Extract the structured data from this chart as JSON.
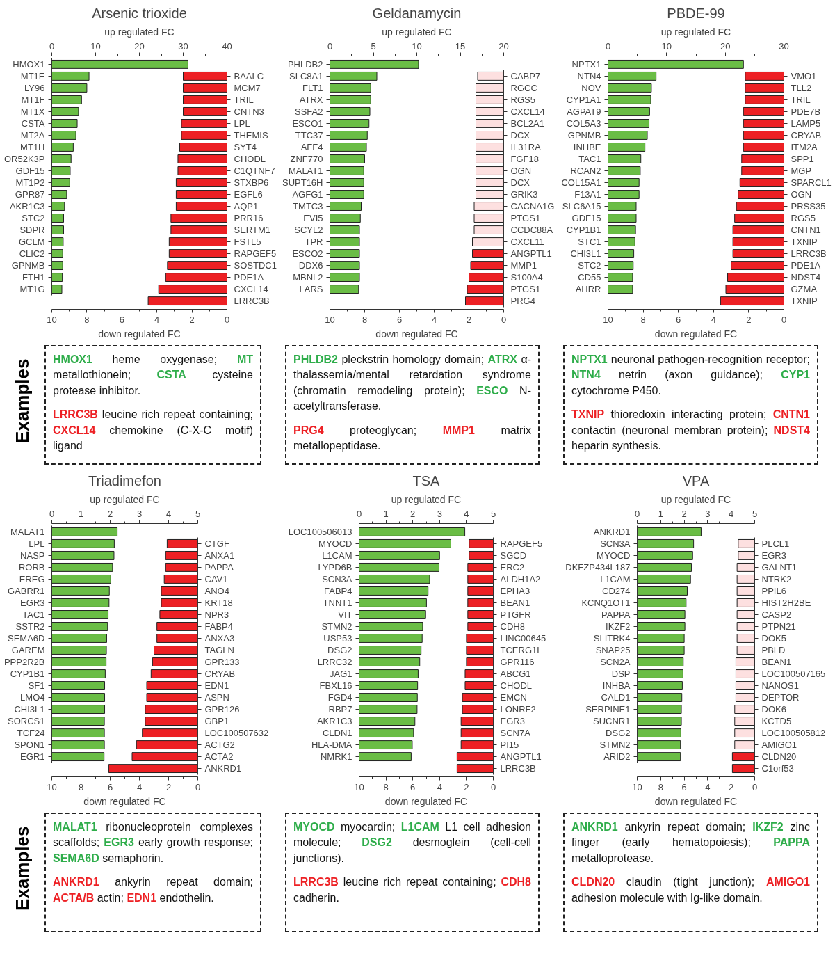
{
  "chart_data": [
    {
      "type": "bar",
      "orientation": "horizontal",
      "title": "Arsenic trioxide",
      "xlabel": "up regulated FC",
      "xlim": [
        0,
        40
      ],
      "xticks": [
        0,
        {
          "value": 5,
          "label": null
        },
        10,
        {
          "value": 15,
          "label": null
        },
        20,
        {
          "value": 25,
          "label": null
        },
        30,
        {
          "value": 35,
          "label": null
        },
        40
      ],
      "color": "#6abd45",
      "categories": [
        "HMOX1",
        "MT1E",
        "LY96",
        "MT1F",
        "MT1X",
        "CSTA",
        "MT2A",
        "MT1H",
        "OR52K3P",
        "GDF15",
        "MT1P2",
        "GPR87",
        "AKR1C3",
        "STC2",
        "SDPR",
        "GCLM",
        "CLIC2",
        "GPNMB",
        "FTH1",
        "MT1G"
      ],
      "values": [
        31.1,
        8.5,
        8.0,
        6.8,
        6.1,
        5.8,
        5.5,
        4.9,
        4.4,
        4.2,
        4.1,
        3.4,
        2.9,
        2.7,
        2.7,
        2.6,
        2.5,
        2.5,
        2.4,
        2.3
      ]
    },
    {
      "type": "bar",
      "orientation": "horizontal",
      "xlabel": "down regulated FC",
      "xlim": [
        10,
        0
      ],
      "xticks": [
        10,
        {
          "value": 9,
          "label": null
        },
        8,
        {
          "value": 7,
          "label": null
        },
        6,
        {
          "value": 5,
          "label": null
        },
        4,
        {
          "value": 3,
          "label": null
        },
        2,
        {
          "value": 1,
          "label": null
        },
        0
      ],
      "color": "#ed2024",
      "categories": [
        "BAALC",
        "MCM7",
        "TRIL",
        "CNTN3",
        "LPL",
        "THEMIS",
        "SYT4",
        "CHODL",
        "C1QTNF7",
        "STXBP6",
        "EGFL6",
        "AQP1",
        "PRR16",
        "SERTM1",
        "FSTL5",
        "RAPGEF5",
        "SOSTDC1",
        "PDE1A",
        "CXCL14",
        "LRRC3B"
      ],
      "values": [
        2.5,
        2.5,
        2.5,
        2.5,
        2.6,
        2.6,
        2.7,
        2.8,
        2.8,
        2.9,
        2.9,
        2.9,
        3.2,
        3.2,
        3.3,
        3.3,
        3.4,
        3.5,
        3.9,
        4.5
      ]
    },
    {
      "type": "bar",
      "orientation": "horizontal",
      "title": "Geldanamycin",
      "xlabel": "up regulated FC",
      "xlim": [
        0,
        20
      ],
      "xticks": [
        0,
        {
          "value": 2.5,
          "label": null
        },
        5,
        {
          "value": 7.5,
          "label": null
        },
        10,
        {
          "value": 12.5,
          "label": null
        },
        15,
        {
          "value": 17.5,
          "label": null
        },
        20
      ],
      "color": "#6abd45",
      "categories": [
        "PHLDB2",
        "SLC8A1",
        "FLT1",
        "ATRX",
        "SSFA2",
        "ESCO1",
        "TTC37",
        "AFF4",
        "ZNF770",
        "MALAT1",
        "SUPT16H",
        "AGFG1",
        "TMTC3",
        "EVI5",
        "SCYL2",
        "TPR",
        "ESCO2",
        "DDX6",
        "MBNL2",
        "LARS"
      ],
      "values": [
        10.2,
        5.4,
        4.7,
        4.7,
        4.6,
        4.5,
        4.3,
        4.2,
        4.0,
        3.9,
        3.9,
        3.9,
        3.6,
        3.5,
        3.4,
        3.4,
        3.4,
        3.4,
        3.4,
        3.3
      ]
    },
    {
      "type": "bar",
      "orientation": "horizontal",
      "xlabel": "down regulated FC",
      "xlim": [
        10,
        0
      ],
      "xticks": [
        10,
        {
          "value": 9,
          "label": null
        },
        8,
        {
          "value": 7,
          "label": null
        },
        6,
        {
          "value": 5,
          "label": null
        },
        4,
        {
          "value": 3,
          "label": null
        },
        2,
        {
          "value": 1,
          "label": null
        },
        0
      ],
      "colors": [
        "#fde0e0",
        "#fde0e0",
        "#fde0e0",
        "#fde0e0",
        "#fde0e0",
        "#fde0e0",
        "#fde0e0",
        "#fde0e0",
        "#fde0e0",
        "#fde0e0",
        "#fde0e0",
        "#fde0e0",
        "#fde0e0",
        "#fde0e0",
        "#fde0e0",
        "#ed2024",
        "#ed2024",
        "#ed2024",
        "#ed2024",
        "#ed2024"
      ],
      "categories": [
        "CABP7",
        "RGCC",
        "RGS5",
        "CXCL14",
        "BCL2A1",
        "DCX",
        "IL31RA",
        "FGF18",
        "OGN",
        "DCX",
        "GRIK3",
        "CACNA1G",
        "PTGS1",
        "CCDC88A",
        "CXCL11",
        "ANGPTL1",
        "MMP1",
        "S100A4",
        "PTGS1",
        "PRG4"
      ],
      "values": [
        1.5,
        1.6,
        1.6,
        1.6,
        1.6,
        1.6,
        1.6,
        1.6,
        1.6,
        1.6,
        1.6,
        1.7,
        1.7,
        1.7,
        1.8,
        1.8,
        1.9,
        2.0,
        2.1,
        2.2
      ]
    },
    {
      "type": "bar",
      "orientation": "horizontal",
      "title": "PBDE-99",
      "xlabel": "up regulated FC",
      "xlim": [
        0,
        30
      ],
      "xticks": [
        0,
        {
          "value": 5,
          "label": null
        },
        10,
        {
          "value": 15,
          "label": null
        },
        20,
        {
          "value": 25,
          "label": null
        },
        30
      ],
      "color": "#6abd45",
      "categories": [
        "NPTX1",
        "NTN4",
        "NOV",
        "CYP1A1",
        "AGPAT9",
        "COL5A3",
        "GPNMB",
        "INHBE",
        "TAC1",
        "RCAN2",
        "COL15A1",
        "F13A1",
        "SLC6A15",
        "GDF15",
        "CYP1B1",
        "STC1",
        "CHI3L1",
        "STC2",
        "CD55",
        "AHRR"
      ],
      "values": [
        23.1,
        8.2,
        7.4,
        7.3,
        7.1,
        7.0,
        6.7,
        6.3,
        5.6,
        5.5,
        5.3,
        5.3,
        4.8,
        4.8,
        4.7,
        4.6,
        4.4,
        4.3,
        4.2,
        4.2
      ]
    },
    {
      "type": "bar",
      "orientation": "horizontal",
      "xlabel": "down regulated FC",
      "xlim": [
        10,
        0
      ],
      "xticks": [
        10,
        {
          "value": 9,
          "label": null
        },
        8,
        {
          "value": 7,
          "label": null
        },
        6,
        {
          "value": 5,
          "label": null
        },
        4,
        {
          "value": 3,
          "label": null
        },
        2,
        {
          "value": 1,
          "label": null
        },
        0
      ],
      "color": "#ed2024",
      "categories": [
        "VMO1",
        "TLL2",
        "TRIL",
        "PDE7B",
        "LAMP5",
        "CRYAB",
        "ITM2A",
        "SPP1",
        "MGP",
        "SPARCL1",
        "OGN",
        "PRSS35",
        "RGS5",
        "CNTN1",
        "TXNIP",
        "LRRC3B",
        "PDE1A",
        "NDST4",
        "GZMA",
        "TXNIP"
      ],
      "values": [
        2.2,
        2.2,
        2.2,
        2.3,
        2.3,
        2.3,
        2.3,
        2.4,
        2.4,
        2.5,
        2.6,
        2.7,
        2.8,
        2.9,
        2.9,
        2.9,
        3.0,
        3.2,
        3.3,
        3.6
      ]
    },
    {
      "type": "other",
      "ylabel": "Examples",
      "colors": [
        "#2ead4a",
        "#ed2024"
      ],
      "annotations": [
        "HMOX1 heme oxygenase; MT metallothionein; CSTA cysteine protease inhibitor.",
        "LRRC3B leucine rich repeat containing; CXCL14 chemokine (C-X-C motif) ligand"
      ]
    },
    {
      "type": "other",
      "colors": [
        "#2ead4a",
        "#ed2024"
      ],
      "annotations": [
        "PHLDB2 pleckstrin homology domain; ATRX α-thalassemia/mental retardation syndrome (chromatin remodeling protein); ESCO N-acetyltransferase.",
        "PRG4 proteoglycan; MMP1 matrix metallopeptidase."
      ]
    },
    {
      "type": "other",
      "colors": [
        "#2ead4a",
        "#ed2024"
      ],
      "annotations": [
        "NPTX1 neuronal pathogen-recognition receptor; NTN4 netrin (axon guidance); CYP1 cytochrome P450.",
        "TXNIP thioredoxin interacting protein; CNTN1 contactin (neuronal membran protein); NDST4 heparin synthesis."
      ]
    },
    {
      "type": "bar",
      "orientation": "horizontal",
      "title": "Triadimefon",
      "xlabel": "up regulated FC",
      "xlim": [
        0,
        5
      ],
      "xticks": [
        0,
        {
          "value": 0.5,
          "label": null
        },
        1,
        {
          "value": 1.5,
          "label": null
        },
        2,
        {
          "value": 2.5,
          "label": null
        },
        3,
        {
          "value": 3.5,
          "label": null
        },
        4,
        {
          "value": 4.5,
          "label": null
        },
        5
      ],
      "color": "#6abd45",
      "categories": [
        "MALAT1",
        "LPL",
        "NASP",
        "RORB",
        "EREG",
        "GABRR1",
        "EGR3",
        "TAC1",
        "SSTR2",
        "SEMA6D",
        "GAREM",
        "PPP2R2B",
        "CYP1B1",
        "SF1",
        "LMO4",
        "CHI3L1",
        "SORCS1",
        "TCF24",
        "SPON1",
        "EGR1"
      ],
      "values": [
        2.24,
        2.14,
        2.13,
        2.08,
        2.02,
        1.97,
        1.96,
        1.93,
        1.91,
        1.88,
        1.87,
        1.86,
        1.83,
        1.81,
        1.81,
        1.81,
        1.8,
        1.8,
        1.8,
        1.79
      ]
    },
    {
      "type": "bar",
      "orientation": "horizontal",
      "xlabel": "down regulated FC",
      "xlim": [
        10,
        0
      ],
      "xticks": [
        10,
        {
          "value": 9,
          "label": null
        },
        8,
        {
          "value": 7,
          "label": null
        },
        6,
        {
          "value": 5,
          "label": null
        },
        4,
        {
          "value": 3,
          "label": null
        },
        2,
        {
          "value": 1,
          "label": null
        },
        0
      ],
      "color": "#ed2024",
      "categories": [
        "CTGF",
        "ANXA1",
        "PAPPA",
        "CAV1",
        "ANO4",
        "KRT18",
        "NPR3",
        "FABP4",
        "ANXA3",
        "TAGLN",
        "GPR133",
        "CRYAB",
        "EDN1",
        "ASPN",
        "GPR126",
        "GBP1",
        "LOC100507632",
        "ACTG2",
        "ACTA2",
        "ANKRD1"
      ],
      "values": [
        2.1,
        2.2,
        2.2,
        2.3,
        2.5,
        2.5,
        2.6,
        2.8,
        2.8,
        3.0,
        3.1,
        3.2,
        3.5,
        3.5,
        3.6,
        3.6,
        3.8,
        4.2,
        4.5,
        6.1
      ]
    },
    {
      "type": "bar",
      "orientation": "horizontal",
      "title": "TSA",
      "xlabel": "up regulated FC",
      "xlim": [
        0,
        5
      ],
      "xticks": [
        0,
        {
          "value": 0.5,
          "label": null
        },
        1,
        {
          "value": 1.5,
          "label": null
        },
        2,
        {
          "value": 2.5,
          "label": null
        },
        3,
        {
          "value": 3.5,
          "label": null
        },
        4,
        {
          "value": 4.5,
          "label": null
        },
        5
      ],
      "color": "#6abd45",
      "categories": [
        "LOC100506013",
        "MYOCD",
        "L1CAM",
        "LYPD6B",
        "SCN3A",
        "FABP4",
        "TNNT1",
        "VIT",
        "STMN2",
        "USP53",
        "DSG2",
        "LRRC32",
        "JAG1",
        "FBXL16",
        "FGD4",
        "RBP7",
        "AKR1C3",
        "CLDN1",
        "HLA-DMA",
        "NMRK1"
      ],
      "values": [
        3.94,
        3.42,
        3.0,
        2.98,
        2.63,
        2.57,
        2.51,
        2.48,
        2.37,
        2.35,
        2.31,
        2.26,
        2.2,
        2.18,
        2.17,
        2.16,
        2.08,
        2.03,
        1.98,
        1.94
      ]
    },
    {
      "type": "bar",
      "orientation": "horizontal",
      "xlabel": "down regulated FC",
      "xlim": [
        10,
        0
      ],
      "xticks": [
        10,
        {
          "value": 9,
          "label": null
        },
        8,
        {
          "value": 7,
          "label": null
        },
        6,
        {
          "value": 5,
          "label": null
        },
        4,
        {
          "value": 3,
          "label": null
        },
        2,
        {
          "value": 1,
          "label": null
        },
        0
      ],
      "color": "#ed2024",
      "categories": [
        "RAPGEF5",
        "SGCD",
        "ERC2",
        "ALDH1A2",
        "EPHA3",
        "BEAN1",
        "PTGFR",
        "CDH8",
        "LINC00645",
        "TCERG1L",
        "GPR116",
        "ABCG1",
        "CHODL",
        "EMCN",
        "LONRF2",
        "EGR3",
        "SCN7A",
        "PI15",
        "ANGPTL1",
        "LRRC3B"
      ],
      "values": [
        1.8,
        1.8,
        1.9,
        1.9,
        1.9,
        1.9,
        1.9,
        1.9,
        2.0,
        2.0,
        2.0,
        2.1,
        2.1,
        2.3,
        2.3,
        2.4,
        2.4,
        2.4,
        2.7,
        2.7
      ]
    },
    {
      "type": "bar",
      "orientation": "horizontal",
      "title": "VPA",
      "xlabel": "up regulated FC",
      "xlim": [
        0,
        5
      ],
      "xticks": [
        0,
        {
          "value": 0.5,
          "label": null
        },
        1,
        {
          "value": 1.5,
          "label": null
        },
        2,
        {
          "value": 2.5,
          "label": null
        },
        3,
        {
          "value": 3.5,
          "label": null
        },
        4,
        {
          "value": 4.5,
          "label": null
        },
        5
      ],
      "color": "#6abd45",
      "categories": [
        "ANKRD1",
        "SCN3A",
        "MYOCD",
        "DKFZP434L187",
        "L1CAM",
        "CD274",
        "KCNQ1OT1",
        "PAPPA",
        "IKZF2",
        "SLITRK4",
        "SNAP25",
        "SCN2A",
        "DSP",
        "INHBA",
        "CALD1",
        "SERPINE1",
        "SUCNR1",
        "DSG2",
        "STMN2",
        "ARID2"
      ],
      "values": [
        2.72,
        2.4,
        2.36,
        2.31,
        2.27,
        2.13,
        2.08,
        2.03,
        2.03,
        2.0,
        2.0,
        1.96,
        1.95,
        1.92,
        1.9,
        1.88,
        1.88,
        1.86,
        1.84,
        1.84
      ]
    },
    {
      "type": "bar",
      "orientation": "horizontal",
      "xlabel": "down regulated FC",
      "xlim": [
        10,
        0
      ],
      "xticks": [
        10,
        {
          "value": 9,
          "label": null
        },
        8,
        {
          "value": 7,
          "label": null
        },
        6,
        {
          "value": 5,
          "label": null
        },
        4,
        {
          "value": 3,
          "label": null
        },
        2,
        {
          "value": 1,
          "label": null
        },
        0
      ],
      "colors": [
        "#fde0e0",
        "#fde0e0",
        "#fde0e0",
        "#fde0e0",
        "#fde0e0",
        "#fde0e0",
        "#fde0e0",
        "#fde0e0",
        "#fde0e0",
        "#fde0e0",
        "#fde0e0",
        "#fde0e0",
        "#fde0e0",
        "#fde0e0",
        "#fde0e0",
        "#fde0e0",
        "#fde0e0",
        "#fde0e0",
        "#ed2024",
        "#ed2024"
      ],
      "categories": [
        "PLCL1",
        "EGR3",
        "GALNT1",
        "NTRK2",
        "PPIL6",
        "HIST2H2BE",
        "CASP2",
        "PTPN21",
        "DOK5",
        "PBLD",
        "BEAN1",
        "LOC100507165",
        "NANOS1",
        "DEPTOR",
        "DOK6",
        "KCTD5",
        "LOC100505812",
        "AMIGO1",
        "CLDN20",
        "C1orf53"
      ],
      "values": [
        1.4,
        1.4,
        1.5,
        1.5,
        1.5,
        1.5,
        1.5,
        1.5,
        1.5,
        1.5,
        1.6,
        1.6,
        1.6,
        1.6,
        1.7,
        1.7,
        1.7,
        1.7,
        1.9,
        1.9
      ]
    },
    {
      "type": "other",
      "ylabel": "Examples",
      "colors": [
        "#2ead4a",
        "#ed2024"
      ],
      "annotations": [
        "MALAT1 ribonucleoprotein complexes scaffolds; EGR3 early growth response; SEMA6D semaphorin.",
        "ANKRD1 ankyrin repeat domain; ACTA/B actin; EDN1 endothelin."
      ]
    },
    {
      "type": "other",
      "colors": [
        "#2ead4a",
        "#ed2024"
      ],
      "annotations": [
        "MYOCD myocardin; L1CAM L1 cell adhesion molecule; DSG2 desmoglein (cell-cell junctions).",
        "LRRC3B leucine rich repeat containing; CDH8 cadherin."
      ]
    },
    {
      "type": "other",
      "colors": [
        "#2ead4a",
        "#ed2024"
      ],
      "annotations": [
        "ANKRD1 ankyrin repeat domain; IKZF2 zinc finger (early hematopoiesis); PAPPA metalloprotease.",
        "CLDN20 claudin (tight junction); AMIGO1 adhesion molecule with Ig-like domain."
      ]
    }
  ]
}
